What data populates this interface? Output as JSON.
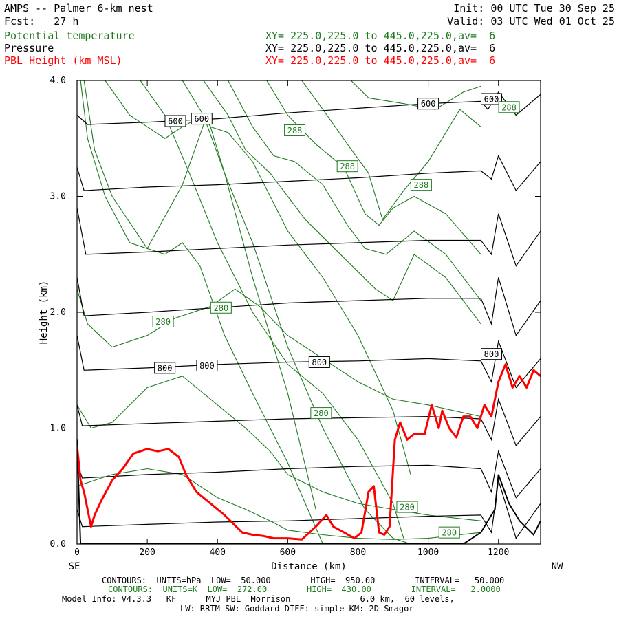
{
  "header": {
    "title": "AMPS -- Palmer 6-km nest",
    "fcst": "Fcst:   27 h",
    "init": "Init: 00 UTC Tue 30 Sep 25",
    "valid": "Valid: 03 UTC Wed 01 Oct 25"
  },
  "legend": [
    {
      "name": "Potential temperature",
      "xy": "XY= 225.0,225.0 to 445.0,225.0,av=  6",
      "color": "#1f7a1f"
    },
    {
      "name": "Pressure",
      "xy": "XY= 225.0,225.0 to 445.0,225.0,av=  6",
      "color": "#000000"
    },
    {
      "name": "PBL Height (km MSL)",
      "xy": "XY= 225.0,225.0 to 445.0,225.0,av=  6",
      "color": "#ff0000"
    }
  ],
  "chart_data": {
    "type": "line",
    "xlabel": "Distance (km)",
    "ylabel": "Height (km)",
    "xlim": [
      0,
      1320
    ],
    "ylim": [
      0,
      4.0
    ],
    "x_ticks": [
      0,
      200,
      400,
      600,
      800,
      1000,
      1200
    ],
    "y_ticks": [
      0.0,
      1.0,
      2.0,
      3.0,
      4.0
    ],
    "x_tick_labels": [
      "0",
      "200",
      "400",
      "600",
      "800",
      "1000",
      "1200"
    ],
    "y_tick_labels": [
      "0.0",
      "1.0",
      "2.0",
      "3.0",
      "4.0"
    ],
    "left_end_label": "SE",
    "right_end_label": "NW",
    "pressure_levels": [
      {
        "x": [
          0,
          30,
          200,
          400,
          600,
          800,
          1000,
          1150,
          1170,
          1200,
          1250,
          1320
        ],
        "y": [
          3.7,
          3.62,
          3.64,
          3.67,
          3.72,
          3.76,
          3.8,
          3.82,
          3.75,
          3.9,
          3.7,
          3.88
        ]
      },
      {
        "x": [
          0,
          20,
          200,
          400,
          600,
          800,
          1000,
          1150,
          1180,
          1200,
          1250,
          1320
        ],
        "y": [
          3.25,
          3.05,
          3.08,
          3.1,
          3.13,
          3.16,
          3.2,
          3.22,
          3.15,
          3.35,
          3.05,
          3.3
        ]
      },
      {
        "x": [
          0,
          25,
          200,
          400,
          600,
          800,
          1000,
          1150,
          1180,
          1200,
          1250,
          1320
        ],
        "y": [
          2.9,
          2.5,
          2.52,
          2.55,
          2.58,
          2.6,
          2.62,
          2.62,
          2.5,
          2.85,
          2.4,
          2.7
        ]
      },
      {
        "x": [
          0,
          20,
          200,
          400,
          600,
          800,
          1000,
          1150,
          1180,
          1200,
          1250,
          1320
        ],
        "y": [
          2.3,
          1.97,
          2.0,
          2.04,
          2.08,
          2.1,
          2.12,
          2.12,
          1.9,
          2.3,
          1.8,
          2.1
        ]
      },
      {
        "x": [
          0,
          20,
          200,
          400,
          600,
          800,
          1000,
          1150,
          1180,
          1200,
          1250,
          1320
        ],
        "y": [
          1.8,
          1.5,
          1.52,
          1.55,
          1.57,
          1.58,
          1.6,
          1.58,
          1.4,
          1.75,
          1.35,
          1.6
        ]
      },
      {
        "x": [
          0,
          15,
          200,
          400,
          600,
          800,
          1000,
          1150,
          1180,
          1200,
          1250,
          1320
        ],
        "y": [
          1.2,
          1.02,
          1.04,
          1.06,
          1.08,
          1.09,
          1.1,
          1.08,
          0.9,
          1.25,
          0.85,
          1.1
        ]
      },
      {
        "x": [
          0,
          15,
          200,
          400,
          600,
          800,
          1000,
          1150,
          1180,
          1200,
          1250,
          1320
        ],
        "y": [
          0.7,
          0.57,
          0.6,
          0.62,
          0.65,
          0.67,
          0.68,
          0.65,
          0.45,
          0.8,
          0.4,
          0.65
        ]
      },
      {
        "x": [
          0,
          15,
          200,
          400,
          600,
          800,
          1000,
          1150,
          1180,
          1200,
          1250,
          1320
        ],
        "y": [
          0.3,
          0.15,
          0.17,
          0.19,
          0.2,
          0.22,
          0.24,
          0.25,
          0.1,
          0.55,
          0.05,
          0.35
        ]
      },
      {
        "x": [
          0,
          10,
          400,
          800,
          1100,
          1150,
          1190,
          1200,
          1230,
          1260,
          1300,
          1320
        ],
        "y": [
          0.9,
          0.0,
          0.0,
          0.0,
          0.0,
          0.1,
          0.3,
          0.6,
          0.35,
          0.2,
          0.08,
          0.2
        ]
      }
    ],
    "theta_lines": [
      {
        "x": [
          10,
          30,
          80,
          150,
          250,
          300,
          350,
          420,
          500,
          600,
          700
        ],
        "y": [
          4.0,
          3.5,
          3.0,
          2.6,
          2.5,
          2.6,
          2.4,
          1.8,
          1.3,
          0.7,
          0.0
        ]
      },
      {
        "x": [
          20,
          50,
          100,
          200,
          300,
          370,
          420,
          500,
          600,
          680
        ],
        "y": [
          4.0,
          3.4,
          3.0,
          2.55,
          3.1,
          3.7,
          3.2,
          2.3,
          1.3,
          0.3
        ]
      },
      {
        "x": [
          80,
          150,
          250,
          300,
          360,
          420,
          500,
          600,
          700,
          820,
          900,
          950
        ],
        "y": [
          4.0,
          3.7,
          3.5,
          3.6,
          3.7,
          3.2,
          2.6,
          1.7,
          1.0,
          0.3,
          0.05,
          0.0
        ]
      },
      {
        "x": [
          180,
          250,
          320,
          400,
          500,
          600,
          700,
          800,
          900,
          930
        ],
        "y": [
          4.0,
          3.7,
          3.2,
          2.6,
          2.0,
          1.55,
          1.3,
          0.9,
          0.35,
          0.05
        ]
      },
      {
        "x": [
          300,
          380,
          430,
          500,
          600,
          700,
          800,
          900,
          950
        ],
        "y": [
          4.0,
          3.6,
          3.55,
          3.3,
          2.7,
          2.3,
          1.8,
          1.15,
          0.6
        ]
      },
      {
        "x": [
          360,
          430,
          480,
          550,
          650,
          750,
          850,
          900,
          960,
          1050,
          1150
        ],
        "y": [
          4.0,
          3.7,
          3.4,
          3.2,
          2.8,
          2.5,
          2.2,
          2.1,
          2.5,
          2.3,
          1.9
        ]
      },
      {
        "x": [
          430,
          500,
          560,
          620,
          700,
          770,
          820,
          880,
          960,
          1050,
          1150
        ],
        "y": [
          4.0,
          3.6,
          3.35,
          3.3,
          3.1,
          2.75,
          2.55,
          2.5,
          2.7,
          2.5,
          2.1
        ]
      },
      {
        "x": [
          540,
          600,
          680,
          760,
          820,
          860,
          900,
          960,
          1050,
          1150
        ],
        "y": [
          4.0,
          3.7,
          3.45,
          3.25,
          2.85,
          2.75,
          2.9,
          3.0,
          2.85,
          2.5
        ]
      },
      {
        "x": [
          640,
          700,
          770,
          830,
          870,
          930,
          1000,
          1090,
          1150
        ],
        "y": [
          4.0,
          3.75,
          3.45,
          3.2,
          2.8,
          3.05,
          3.3,
          3.75,
          3.6
        ]
      },
      {
        "x": [
          780,
          830,
          930,
          1020,
          1100,
          1150
        ],
        "y": [
          4.0,
          3.85,
          3.8,
          3.75,
          3.9,
          3.95
        ]
      },
      {
        "x": [
          0,
          30,
          100,
          200,
          280,
          380,
          450,
          520,
          600,
          700,
          800,
          900,
          1000,
          1150
        ],
        "y": [
          2.2,
          1.9,
          1.7,
          1.8,
          1.95,
          2.05,
          2.2,
          2.05,
          1.8,
          1.6,
          1.4,
          1.25,
          1.2,
          1.1
        ]
      },
      {
        "x": [
          0,
          40,
          100,
          200,
          300,
          400,
          480,
          550,
          600,
          700,
          800,
          900,
          1000,
          1150
        ],
        "y": [
          1.2,
          1.0,
          1.05,
          1.35,
          1.45,
          1.2,
          1.0,
          0.8,
          0.6,
          0.45,
          0.35,
          0.3,
          0.25,
          0.2
        ]
      },
      {
        "x": [
          0,
          100,
          200,
          300,
          400,
          480,
          550,
          600,
          700,
          800,
          900,
          1000,
          1150
        ],
        "y": [
          0.5,
          0.6,
          0.65,
          0.6,
          0.4,
          0.3,
          0.2,
          0.12,
          0.08,
          0.05,
          0.04,
          0.05,
          0.1
        ]
      }
    ],
    "pbl_height": {
      "x": [
        0,
        10,
        20,
        30,
        40,
        50,
        70,
        100,
        130,
        160,
        200,
        230,
        260,
        290,
        310,
        340,
        380,
        420,
        470,
        500,
        530,
        560,
        600,
        640,
        680,
        710,
        730,
        760,
        790,
        810,
        830,
        845,
        860,
        875,
        890,
        905,
        920,
        940,
        960,
        990,
        1010,
        1030,
        1040,
        1060,
        1080,
        1100,
        1120,
        1140,
        1160,
        1180,
        1200,
        1220,
        1240,
        1260,
        1280,
        1300,
        1320
      ],
      "y": [
        0.85,
        0.55,
        0.45,
        0.3,
        0.15,
        0.25,
        0.38,
        0.55,
        0.65,
        0.78,
        0.82,
        0.8,
        0.82,
        0.75,
        0.6,
        0.45,
        0.35,
        0.25,
        0.1,
        0.08,
        0.07,
        0.05,
        0.05,
        0.04,
        0.15,
        0.25,
        0.15,
        0.1,
        0.05,
        0.1,
        0.45,
        0.5,
        0.1,
        0.08,
        0.15,
        0.9,
        1.05,
        0.9,
        0.95,
        0.95,
        1.2,
        1.0,
        1.15,
        1.0,
        0.92,
        1.1,
        1.1,
        1.0,
        1.2,
        1.1,
        1.4,
        1.55,
        1.35,
        1.45,
        1.35,
        1.5,
        1.45
      ]
    },
    "labels": [
      {
        "text": "600",
        "x": 280,
        "y": 3.65,
        "series": "pressure"
      },
      {
        "text": "600",
        "x": 355,
        "y": 3.67,
        "series": "pressure"
      },
      {
        "text": "600",
        "x": 1000,
        "y": 3.8,
        "series": "pressure"
      },
      {
        "text": "600",
        "x": 1180,
        "y": 3.84,
        "series": "pressure"
      },
      {
        "text": "800",
        "x": 250,
        "y": 1.52,
        "series": "pressure"
      },
      {
        "text": "800",
        "x": 370,
        "y": 1.54,
        "series": "pressure"
      },
      {
        "text": "800",
        "x": 690,
        "y": 1.57,
        "series": "pressure"
      },
      {
        "text": "800",
        "x": 1180,
        "y": 1.64,
        "series": "pressure"
      },
      {
        "text": "288",
        "x": 620,
        "y": 3.57,
        "series": "theta"
      },
      {
        "text": "288",
        "x": 770,
        "y": 3.26,
        "series": "theta"
      },
      {
        "text": "288",
        "x": 980,
        "y": 3.1,
        "series": "theta"
      },
      {
        "text": "288",
        "x": 1230,
        "y": 3.77,
        "series": "theta"
      },
      {
        "text": "280",
        "x": 245,
        "y": 1.92,
        "series": "theta"
      },
      {
        "text": "280",
        "x": 410,
        "y": 2.04,
        "series": "theta"
      },
      {
        "text": "280",
        "x": 695,
        "y": 1.13,
        "series": "theta"
      },
      {
        "text": "280",
        "x": 940,
        "y": 0.32,
        "series": "theta"
      },
      {
        "text": "280",
        "x": 1060,
        "y": 0.1,
        "series": "theta"
      }
    ]
  },
  "footer": {
    "contours_black": "CONTOURS:  UNITS=hPa  LOW=  50.000        HIGH=  950.00        INTERVAL=   50.000",
    "contours_green": "CONTOURS:  UNITS=K  LOW=  272.00        HIGH=  430.00        INTERVAL=   2.0000",
    "model_info": "Model Info: V4.3.3   KF      MYJ PBL  Morrison              6.0 km,  60 levels,",
    "physics": "LW: RRTM SW: Goddard DIFF: simple KM: 2D Smagor"
  }
}
